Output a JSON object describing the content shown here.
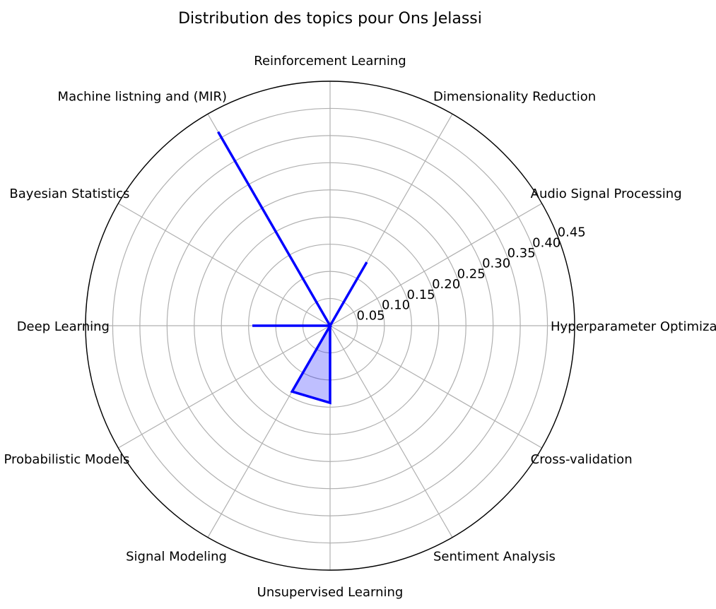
{
  "chart_data": {
    "type": "radar",
    "title": "Distribution des topics pour Ons Jelassi",
    "categories": [
      "Hyperparameter Optimization",
      "Audio Signal Processing",
      "Dimensionality Reduction",
      "Reinforcement Learning",
      "Machine listning and (MIR)",
      "Bayesian Statistics",
      "Deep Learning",
      "Probabilistic Models",
      "Signal Modeling",
      "Unsupervised Learning",
      "Sentiment Analysis",
      "Cross-validation"
    ],
    "series": [
      {
        "values": [
          0.0,
          0.0,
          0.135,
          0.0,
          0.412,
          0.0,
          0.143,
          0.0,
          0.14,
          0.142,
          0.0,
          0.0
        ],
        "color": "#0000ff",
        "fill": "rgba(0,0,255,0.25)"
      }
    ],
    "rlim": [
      0,
      0.45
    ],
    "rticks": [
      "0.05",
      "0.10",
      "0.15",
      "0.20",
      "0.25",
      "0.30",
      "0.35",
      "0.40",
      "0.45"
    ],
    "rtick_values": [
      0.05,
      0.1,
      0.15,
      0.2,
      0.25,
      0.3,
      0.35,
      0.4,
      0.45
    ],
    "grid": true
  }
}
